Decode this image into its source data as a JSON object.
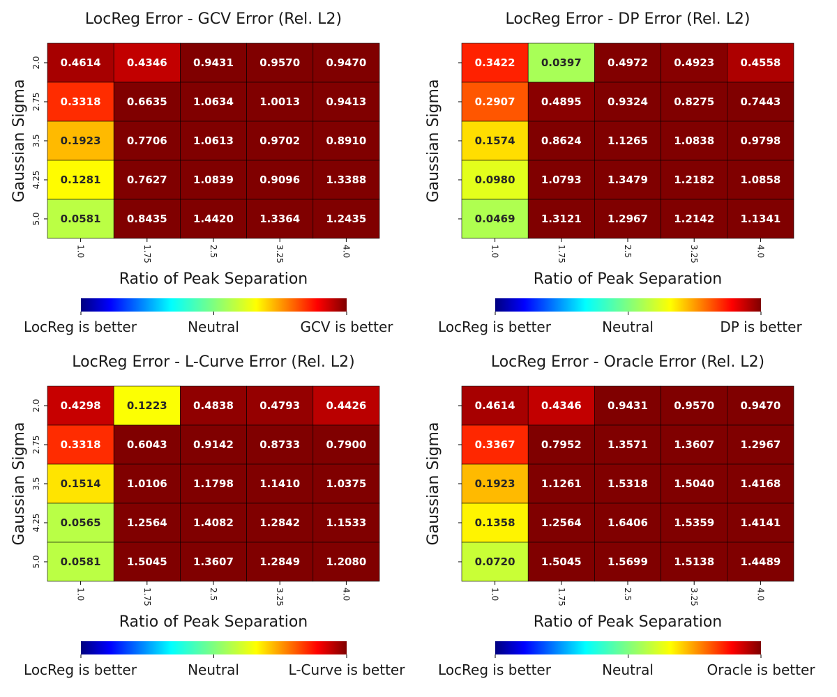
{
  "chart_data": [
    {
      "type": "heatmap",
      "title": "LocReg Error - GCV Error (Rel. L2)",
      "xlabel": "Ratio of Peak Separation",
      "ylabel": "Gaussian Sigma",
      "x_ticks": [
        "1.0",
        "1.75",
        "2.5",
        "3.25",
        "4.0"
      ],
      "y_ticks": [
        "2.0",
        "2.75",
        "3.5",
        "4.25",
        "5.0"
      ],
      "show_y_tick_labels": true,
      "values": [
        [
          0.4614,
          0.4346,
          0.9431,
          0.957,
          0.947
        ],
        [
          0.3318,
          0.6635,
          1.0634,
          1.0013,
          0.9413
        ],
        [
          0.1923,
          0.7706,
          1.0613,
          0.9702,
          0.891
        ],
        [
          0.1281,
          0.7627,
          1.0839,
          0.9096,
          1.3388
        ],
        [
          0.0581,
          0.8435,
          1.442,
          1.3364,
          1.2435
        ]
      ],
      "colormap": "jet",
      "colorbar_labels": [
        "LocReg is better",
        "Neutral",
        "GCV is better"
      ]
    },
    {
      "type": "heatmap",
      "title": "LocReg Error - DP Error (Rel. L2)",
      "xlabel": "Ratio of Peak Separation",
      "ylabel": "Gaussian Sigma",
      "x_ticks": [
        "1.0",
        "1.75",
        "2.5",
        "3.25",
        "4.0"
      ],
      "y_ticks": [
        "",
        "",
        "",
        "",
        ""
      ],
      "show_y_tick_labels": false,
      "values": [
        [
          0.3422,
          0.0397,
          0.4972,
          0.4923,
          0.4558
        ],
        [
          0.2907,
          0.4895,
          0.9324,
          0.8275,
          0.7443
        ],
        [
          0.1574,
          0.8624,
          1.1265,
          1.0838,
          0.9798
        ],
        [
          0.098,
          1.0793,
          1.3479,
          1.2182,
          1.0858
        ],
        [
          0.0469,
          1.3121,
          1.2967,
          1.2142,
          1.1341
        ]
      ],
      "colormap": "jet",
      "colorbar_labels": [
        "LocReg is better",
        "Neutral",
        "DP is better"
      ]
    },
    {
      "type": "heatmap",
      "title": "LocReg Error - L-Curve Error (Rel. L2)",
      "xlabel": "Ratio of Peak Separation",
      "ylabel": "Gaussian Sigma",
      "x_ticks": [
        "1.0",
        "1.75",
        "2.5",
        "3.25",
        "4.0"
      ],
      "y_ticks": [
        "2.0",
        "2.75",
        "3.5",
        "4.25",
        "5.0"
      ],
      "show_y_tick_labels": true,
      "values": [
        [
          0.4298,
          0.1223,
          0.4838,
          0.4793,
          0.4426
        ],
        [
          0.3318,
          0.6043,
          0.9142,
          0.8733,
          0.79
        ],
        [
          0.1514,
          1.0106,
          1.1798,
          1.141,
          1.0375
        ],
        [
          0.0565,
          1.2564,
          1.4082,
          1.2842,
          1.1533
        ],
        [
          0.0581,
          1.5045,
          1.3607,
          1.2849,
          1.208
        ]
      ],
      "colormap": "jet",
      "colorbar_labels": [
        "LocReg is better",
        "Neutral",
        "L-Curve is better"
      ]
    },
    {
      "type": "heatmap",
      "title": "LocReg Error - Oracle Error (Rel. L2)",
      "xlabel": "Ratio of Peak Separation",
      "ylabel": "Gaussian Sigma",
      "x_ticks": [
        "1.0",
        "1.75",
        "2.5",
        "3.25",
        "4.0"
      ],
      "y_ticks": [
        "",
        "",
        "",
        "",
        ""
      ],
      "show_y_tick_labels": false,
      "values": [
        [
          0.4614,
          0.4346,
          0.9431,
          0.957,
          0.947
        ],
        [
          0.3367,
          0.7952,
          1.3571,
          1.3607,
          1.2967
        ],
        [
          0.1923,
          1.1261,
          1.5318,
          1.504,
          1.4168
        ],
        [
          0.1358,
          1.2564,
          1.6406,
          1.5359,
          1.4141
        ],
        [
          0.072,
          1.5045,
          1.5699,
          1.5138,
          1.4489
        ]
      ],
      "colormap": "jet",
      "colorbar_labels": [
        "LocReg is better",
        "Neutral",
        "Oracle is better"
      ]
    }
  ]
}
